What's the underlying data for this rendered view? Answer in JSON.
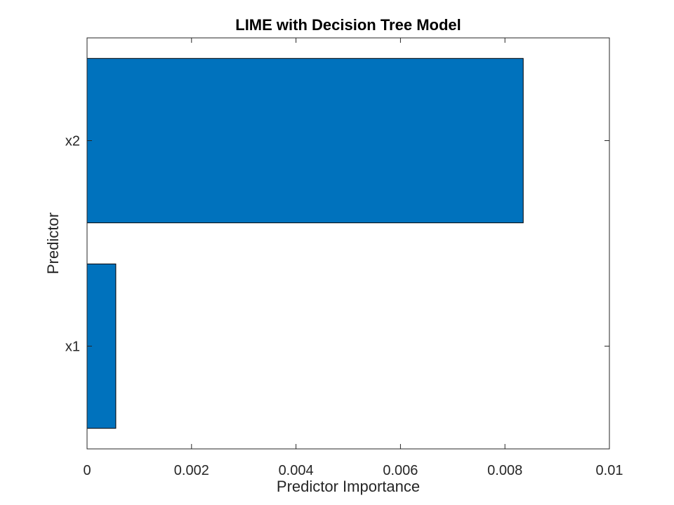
{
  "chart_data": {
    "type": "bar",
    "orientation": "horizontal",
    "title": "LIME with Decision Tree Model",
    "xlabel": "Predictor Importance",
    "ylabel": "Predictor",
    "categories": [
      "x1",
      "x2"
    ],
    "values": [
      0.00055,
      0.00835
    ],
    "xlim": [
      0,
      0.01
    ],
    "xticks": [
      0,
      0.002,
      0.004,
      0.006,
      0.008,
      0.01
    ],
    "xtick_labels": [
      "0",
      "0.002",
      "0.004",
      "0.006",
      "0.008",
      "0.01"
    ],
    "grid": false,
    "bar_color": "#0072BD"
  }
}
